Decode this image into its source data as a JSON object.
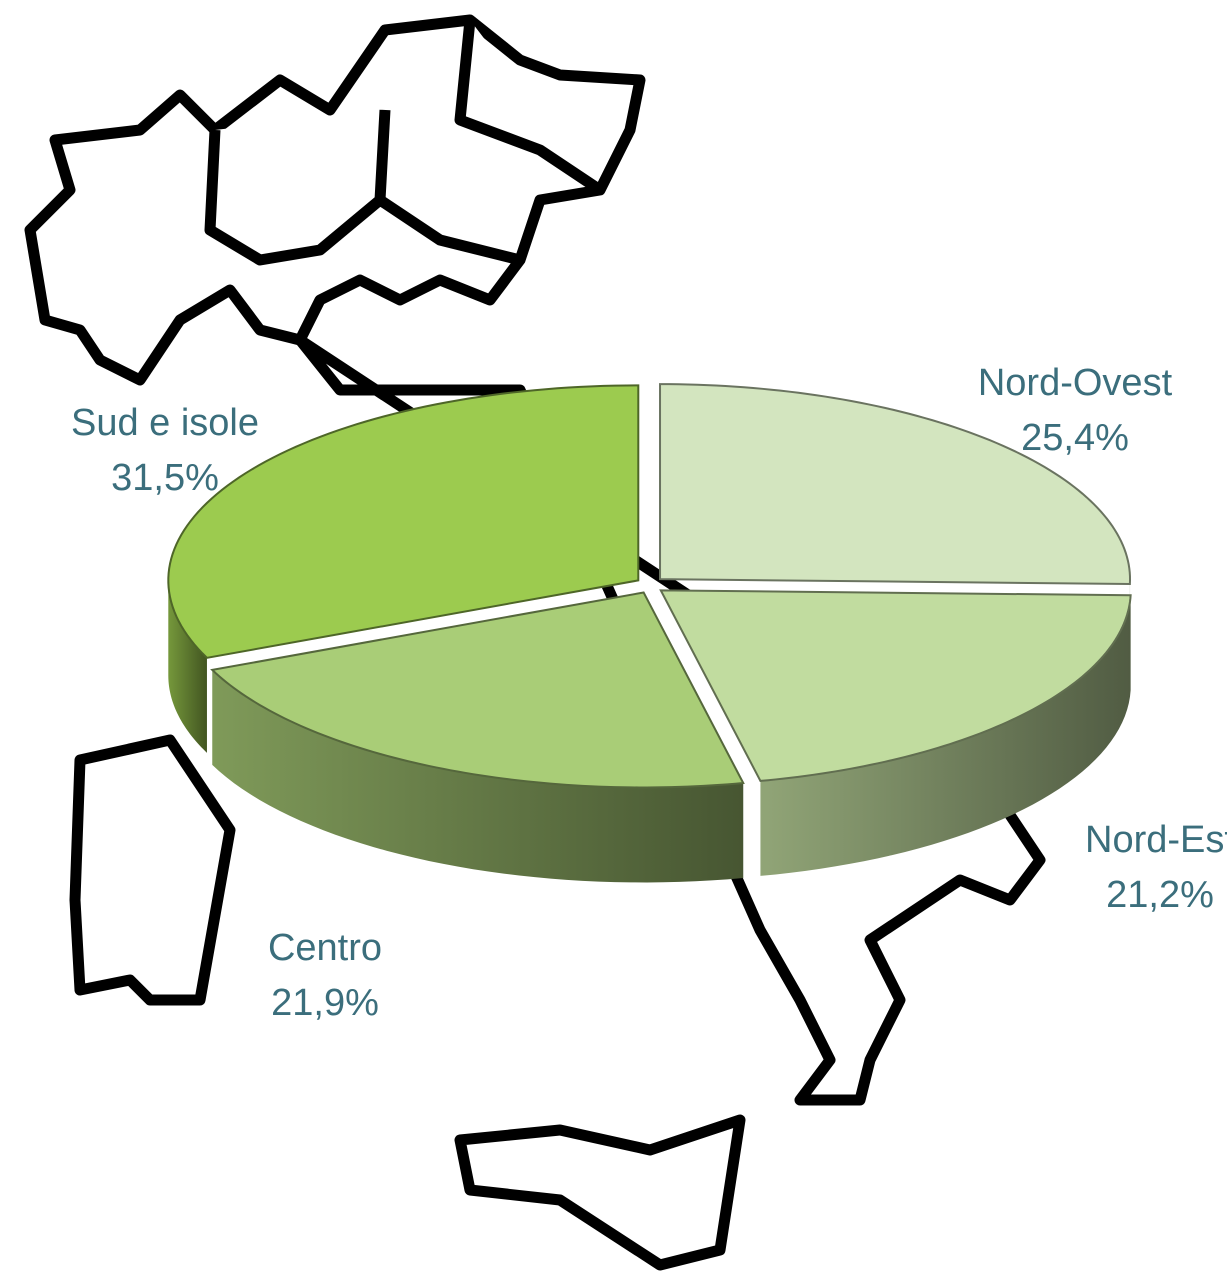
{
  "chart_data": {
    "type": "pie",
    "categories": [
      "Nord-Ovest",
      "Nord-Est",
      "Centro",
      "Sud e isole"
    ],
    "values": [
      25.4,
      21.2,
      21.9,
      31.5
    ],
    "value_labels": [
      "25,4%",
      "21,2%",
      "21,9%",
      "31,5%"
    ],
    "colors": [
      "#d3e5bf",
      "#c1dc9f",
      "#a9cd77",
      "#9ccb4f"
    ]
  }
}
